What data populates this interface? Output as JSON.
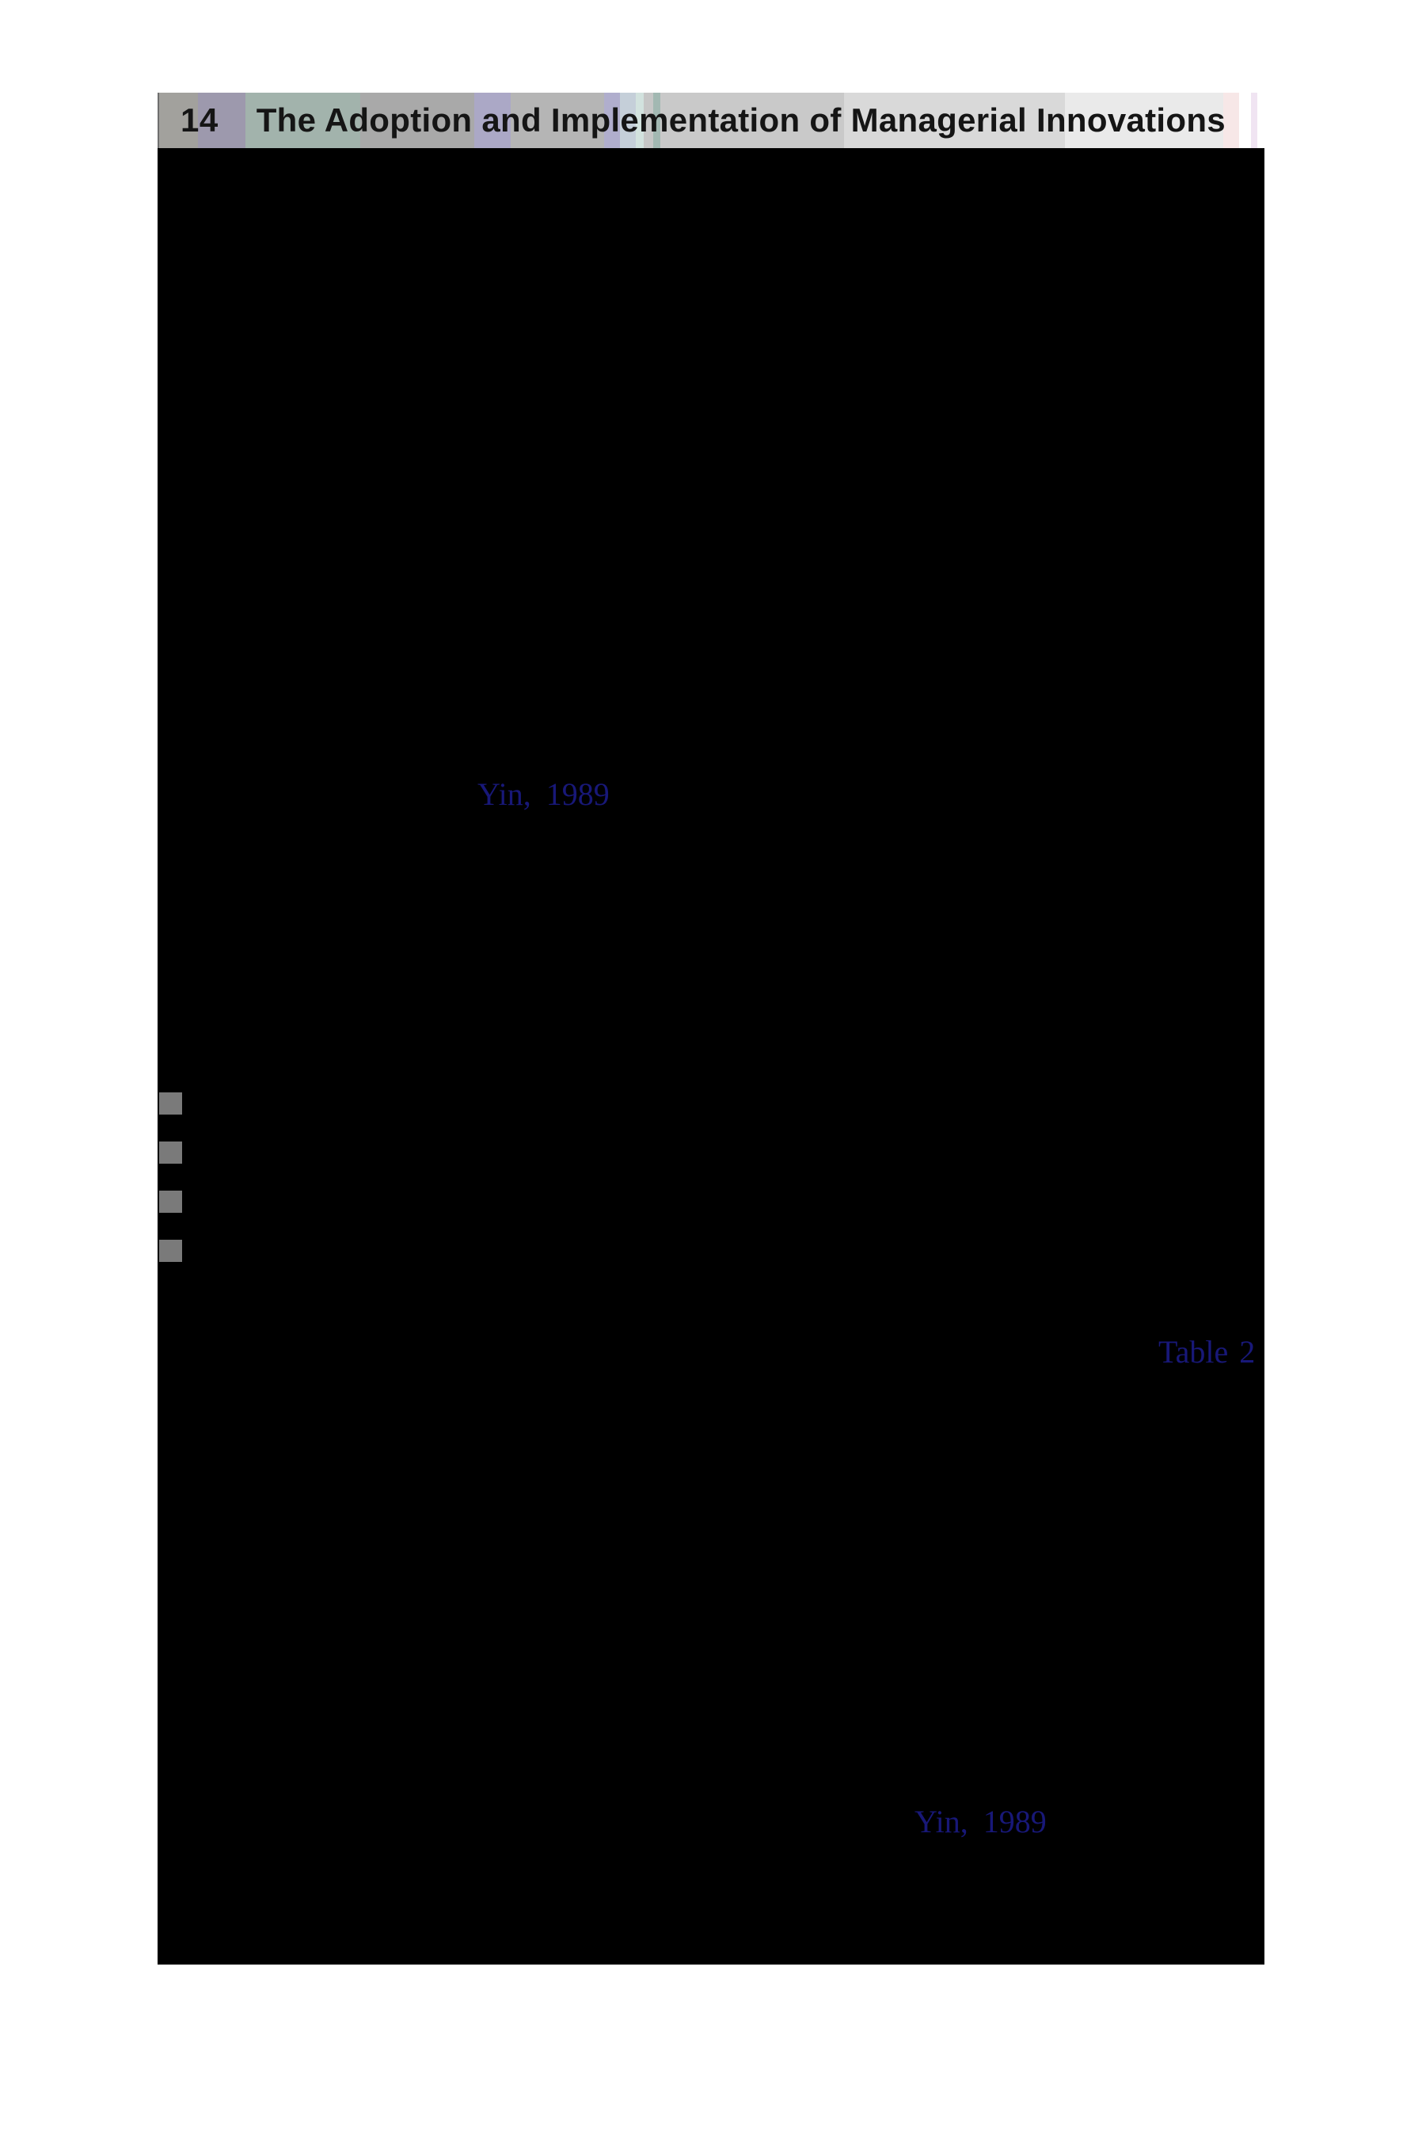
{
  "header": {
    "page_number": "14",
    "title": "The Adoption and Implementation of Managerial Innovations"
  },
  "content": {
    "links": [
      {
        "text": "Yin, 1989",
        "type": "citation"
      },
      {
        "text": "Table 2",
        "type": "table-reference"
      },
      {
        "text": "Yin, 1989",
        "type": "citation"
      }
    ],
    "bullet_count": 4
  },
  "colors": {
    "link_blue": "#181878",
    "bullet_gray": "#7a7a7a",
    "page_background": "#000000",
    "header_text": "#151515"
  }
}
